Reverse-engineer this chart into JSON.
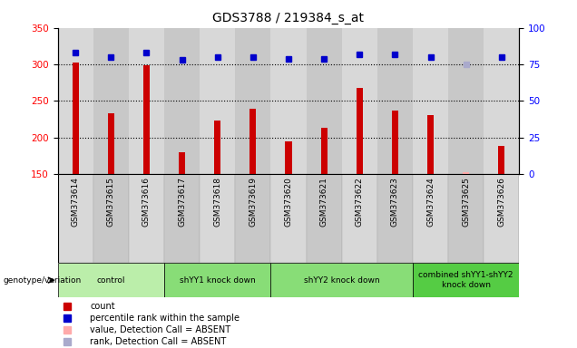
{
  "title": "GDS3788 / 219384_s_at",
  "samples": [
    "GSM373614",
    "GSM373615",
    "GSM373616",
    "GSM373617",
    "GSM373618",
    "GSM373619",
    "GSM373620",
    "GSM373621",
    "GSM373622",
    "GSM373623",
    "GSM373624",
    "GSM373625",
    "GSM373626"
  ],
  "bar_values": [
    302,
    233,
    299,
    180,
    223,
    239,
    195,
    213,
    268,
    237,
    230,
    152,
    188
  ],
  "bar_absent": [
    false,
    false,
    false,
    false,
    false,
    false,
    false,
    false,
    false,
    false,
    false,
    true,
    false
  ],
  "dot_values": [
    83,
    80,
    83,
    78,
    80,
    80,
    79,
    79,
    82,
    82,
    80,
    75,
    80
  ],
  "dot_absent": [
    false,
    false,
    false,
    false,
    false,
    false,
    false,
    false,
    false,
    false,
    false,
    true,
    false
  ],
  "ylim_left": [
    150,
    350
  ],
  "ylim_right": [
    0,
    100
  ],
  "yticks_left": [
    150,
    200,
    250,
    300,
    350
  ],
  "yticks_right": [
    0,
    25,
    50,
    75,
    100
  ],
  "bar_color": "#cc0000",
  "bar_absent_color": "#ffaaaa",
  "dot_color": "#0000cc",
  "dot_absent_color": "#aaaacc",
  "groups": [
    {
      "label": "control",
      "start": 0,
      "end": 2,
      "color": "#bbeeaa"
    },
    {
      "label": "shYY1 knock down",
      "start": 3,
      "end": 5,
      "color": "#88dd77"
    },
    {
      "label": "shYY2 knock down",
      "start": 6,
      "end": 9,
      "color": "#88dd77"
    },
    {
      "label": "combined shYY1-shYY2\nknock down",
      "start": 10,
      "end": 12,
      "color": "#55cc44"
    }
  ],
  "legend_items": [
    {
      "label": "count",
      "color": "#cc0000"
    },
    {
      "label": "percentile rank within the sample",
      "color": "#0000cc"
    },
    {
      "label": "value, Detection Call = ABSENT",
      "color": "#ffaaaa"
    },
    {
      "label": "rank, Detection Call = ABSENT",
      "color": "#aaaacc"
    }
  ],
  "grid_dotted_values": [
    200,
    250,
    300
  ],
  "plot_bg_color": "#cccccc",
  "col_bg_even": "#c8c8c8",
  "col_bg_odd": "#d8d8d8"
}
